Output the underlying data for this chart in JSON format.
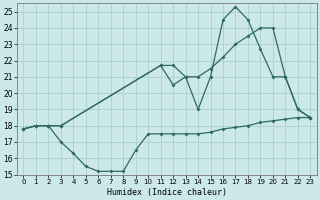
{
  "xlabel": "Humidex (Indice chaleur)",
  "background_color": "#cce8e8",
  "grid_color": "#aacfcf",
  "line_color": "#2e6b5e",
  "xlim": [
    -0.5,
    23.5
  ],
  "ylim": [
    15,
    25.5
  ],
  "xticks": [
    0,
    1,
    2,
    3,
    4,
    5,
    6,
    7,
    8,
    9,
    10,
    11,
    12,
    13,
    14,
    15,
    16,
    17,
    18,
    19,
    20,
    21,
    22,
    23
  ],
  "yticks": [
    15,
    16,
    17,
    18,
    19,
    20,
    21,
    22,
    23,
    24,
    25
  ],
  "line1_x": [
    0,
    1,
    2,
    3,
    4,
    5,
    6,
    7,
    8,
    9,
    10,
    11,
    12,
    13,
    14,
    15,
    16,
    17,
    18,
    19,
    20,
    21,
    22,
    23
  ],
  "line1_y": [
    17.8,
    18.0,
    18.0,
    17.0,
    16.3,
    15.5,
    15.2,
    15.2,
    15.2,
    16.5,
    17.5,
    17.5,
    17.5,
    17.5,
    17.5,
    17.6,
    17.8,
    17.9,
    18.0,
    18.2,
    18.3,
    18.4,
    18.5,
    18.5
  ],
  "line2_x": [
    0,
    1,
    2,
    3,
    11,
    12,
    13,
    14,
    15,
    16,
    17,
    18,
    19,
    20,
    21,
    22,
    23
  ],
  "line2_y": [
    17.8,
    18.0,
    18.0,
    18.0,
    21.7,
    21.7,
    21.0,
    21.0,
    21.5,
    22.2,
    23.0,
    23.5,
    24.0,
    24.0,
    21.0,
    19.0,
    18.5
  ],
  "line3_x": [
    0,
    1,
    2,
    3,
    11,
    12,
    13,
    14,
    15,
    16,
    17,
    18,
    19,
    20,
    21,
    22,
    23
  ],
  "line3_y": [
    17.8,
    18.0,
    18.0,
    18.0,
    21.7,
    20.5,
    21.0,
    19.0,
    21.0,
    24.5,
    25.3,
    24.5,
    22.7,
    21.0,
    21.0,
    19.0,
    18.5
  ]
}
